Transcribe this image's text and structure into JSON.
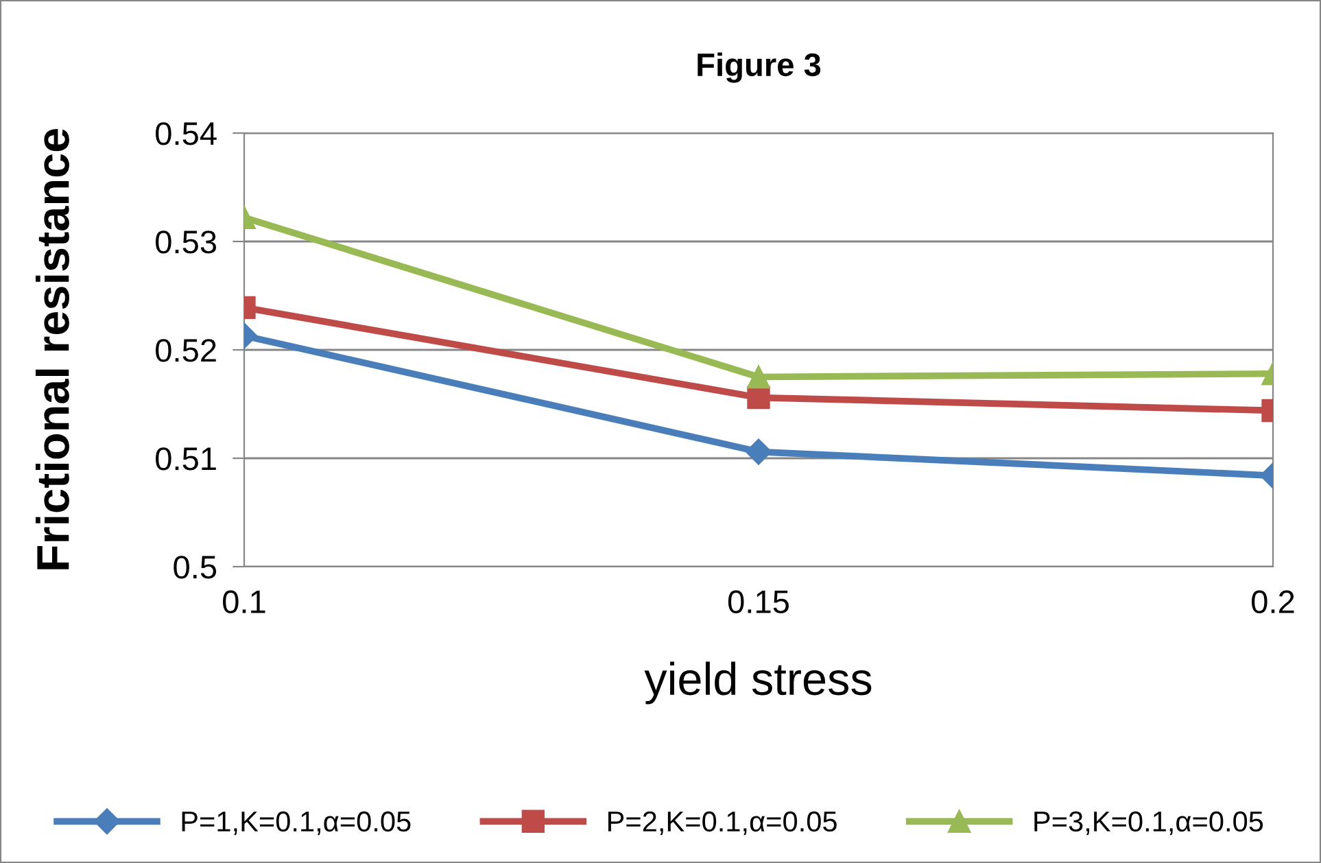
{
  "chart_data": {
    "type": "line",
    "title": "Figure 3",
    "xlabel": "yield stress",
    "ylabel": "Frictional resistance",
    "x": [
      0.1,
      0.15,
      0.2
    ],
    "series": [
      {
        "name": "P=1,K=0.1,α=0.05",
        "color": "#4a7ebb",
        "marker": "diamond",
        "values": [
          0.5213,
          0.5106,
          0.5084
        ]
      },
      {
        "name": "P=2,K=0.1,α=0.05",
        "color": "#be4b48",
        "marker": "square",
        "values": [
          0.5239,
          0.5156,
          0.5144
        ]
      },
      {
        "name": "P=3,K=0.1,α=0.05",
        "color": "#98b954",
        "marker": "triangle",
        "values": [
          0.5322,
          0.5175,
          0.5178
        ]
      }
    ],
    "xlim": [
      0.1,
      0.2
    ],
    "xticks": [
      0.1,
      0.15,
      0.2
    ],
    "ylim": [
      0.5,
      0.54
    ],
    "yticks": [
      0.5,
      0.51,
      0.52,
      0.53,
      0.54
    ],
    "grid": "y",
    "legend": "bottom",
    "line_style": "solid"
  }
}
